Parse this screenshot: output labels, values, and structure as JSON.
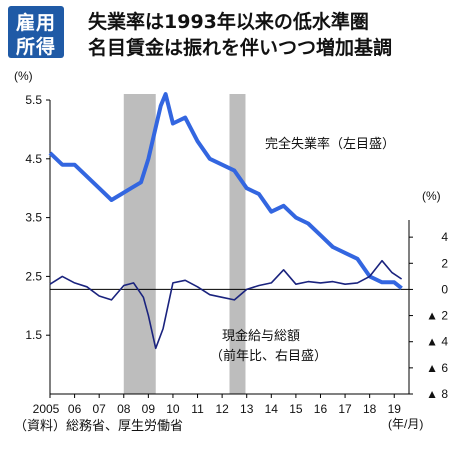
{
  "badge": {
    "line1": "雇用",
    "line2": "所得",
    "color": "#1f5aa6"
  },
  "title": {
    "line1": "失業率は1993年以来の低水準圏",
    "line2": "名目賃金は振れを伴いつつ増加基調"
  },
  "source": "（資料）総務省、厚生労働省",
  "colors": {
    "unemployment": "#3366e0",
    "wages": "#1a237e",
    "shading": "#bdbdbd"
  },
  "chart_data": {
    "type": "line",
    "left_axis": {
      "unit": "(%)",
      "ticks": [
        1.5,
        2.5,
        3.5,
        4.5,
        5.5
      ],
      "range": [
        0.5,
        5.5
      ]
    },
    "right_axis": {
      "unit": "(%)",
      "ticks": [
        4,
        2,
        0,
        "▲ 2",
        "▲ 4",
        "▲ 6",
        "▲ 8"
      ],
      "tick_values": [
        4,
        2,
        0,
        -2,
        -4,
        -6,
        -8
      ],
      "range": [
        -8,
        6
      ]
    },
    "x_axis": {
      "unit": "(年/月)",
      "tick_labels": [
        "2005",
        "06",
        "07",
        "08",
        "09",
        "10",
        "11",
        "12",
        "13",
        "14",
        "15",
        "16",
        "17",
        "18",
        "19"
      ],
      "range": [
        2005.0,
        2019.6
      ]
    },
    "shaded_periods": [
      [
        2008.0,
        2009.3
      ],
      [
        2012.3,
        2012.95
      ]
    ],
    "series": [
      {
        "name": "完全失業率（左目盛）",
        "axis": "left",
        "points": [
          [
            2005.0,
            4.6
          ],
          [
            2005.5,
            4.4
          ],
          [
            2006.0,
            4.4
          ],
          [
            2006.5,
            4.2
          ],
          [
            2007.0,
            4.0
          ],
          [
            2007.5,
            3.8
          ],
          [
            2007.9,
            3.9
          ],
          [
            2008.3,
            4.0
          ],
          [
            2008.7,
            4.1
          ],
          [
            2009.0,
            4.5
          ],
          [
            2009.5,
            5.4
          ],
          [
            2009.7,
            5.6
          ],
          [
            2010.0,
            5.1
          ],
          [
            2010.5,
            5.2
          ],
          [
            2011.0,
            4.8
          ],
          [
            2011.5,
            4.5
          ],
          [
            2012.0,
            4.4
          ],
          [
            2012.5,
            4.3
          ],
          [
            2013.0,
            4.0
          ],
          [
            2013.5,
            3.9
          ],
          [
            2014.0,
            3.6
          ],
          [
            2014.5,
            3.7
          ],
          [
            2015.0,
            3.5
          ],
          [
            2015.5,
            3.4
          ],
          [
            2016.0,
            3.2
          ],
          [
            2016.5,
            3.0
          ],
          [
            2017.0,
            2.9
          ],
          [
            2017.5,
            2.8
          ],
          [
            2018.0,
            2.5
          ],
          [
            2018.5,
            2.4
          ],
          [
            2019.0,
            2.4
          ],
          [
            2019.3,
            2.3
          ]
        ]
      },
      {
        "name": "現金給与総額（前年比、右目盛）",
        "axis": "right",
        "points": [
          [
            2005.0,
            0.4
          ],
          [
            2005.5,
            1.0
          ],
          [
            2006.0,
            0.5
          ],
          [
            2006.5,
            0.2
          ],
          [
            2007.0,
            -0.5
          ],
          [
            2007.5,
            -0.8
          ],
          [
            2008.0,
            0.3
          ],
          [
            2008.4,
            0.5
          ],
          [
            2008.8,
            -0.6
          ],
          [
            2009.0,
            -2.0
          ],
          [
            2009.3,
            -4.5
          ],
          [
            2009.6,
            -3.0
          ],
          [
            2010.0,
            0.5
          ],
          [
            2010.5,
            0.7
          ],
          [
            2011.0,
            0.2
          ],
          [
            2011.5,
            -0.4
          ],
          [
            2012.0,
            -0.6
          ],
          [
            2012.5,
            -0.8
          ],
          [
            2013.0,
            0.0
          ],
          [
            2013.5,
            0.3
          ],
          [
            2014.0,
            0.5
          ],
          [
            2014.5,
            1.5
          ],
          [
            2015.0,
            0.4
          ],
          [
            2015.5,
            0.6
          ],
          [
            2016.0,
            0.5
          ],
          [
            2016.5,
            0.6
          ],
          [
            2017.0,
            0.4
          ],
          [
            2017.5,
            0.5
          ],
          [
            2018.0,
            1.0
          ],
          [
            2018.5,
            2.2
          ],
          [
            2018.9,
            1.3
          ],
          [
            2019.3,
            0.8
          ]
        ]
      }
    ],
    "labels": {
      "unemployment": "完全失業率（左目盛）",
      "wages_line1": "現金給与総額",
      "wages_line2": "（前年比、右目盛）"
    }
  }
}
